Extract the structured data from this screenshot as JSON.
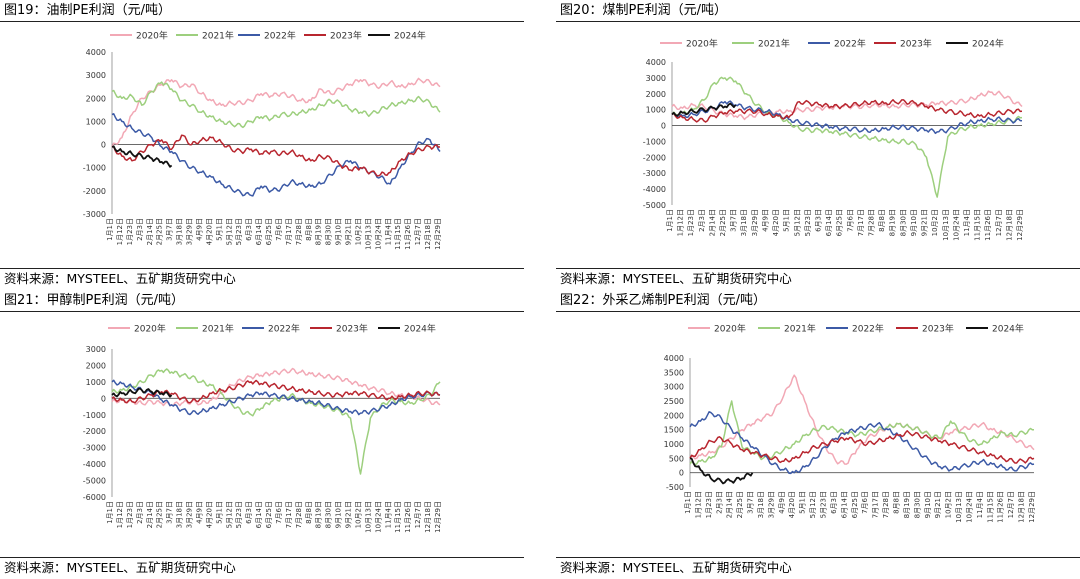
{
  "source_text": "资料来源：MYSTEEL、五矿期货研究中心",
  "colors": {
    "2020": "#f2a8b5",
    "2021": "#9dcf7e",
    "2022": "#3c5aa6",
    "2023": "#b8262f",
    "2024": "#111111"
  },
  "x_date_labels": [
    "1月1日",
    "1月12日",
    "1月23日",
    "2月3日",
    "2月14日",
    "2月25日",
    "3月7日",
    "3月18日",
    "3月29日",
    "4月9日",
    "4月20日",
    "5月1日",
    "5月12日",
    "5月23日",
    "6月3日",
    "6月14日",
    "6月25日",
    "7月6日",
    "7月17日",
    "7月28日",
    "8月8日",
    "8月19日",
    "8月30日",
    "9月10日",
    "9月21日",
    "10月2日",
    "10月13日",
    "10月24日",
    "11月4日",
    "11月15日",
    "11月26日",
    "12月7日",
    "12月18日",
    "12月29日"
  ],
  "chart_data": [
    {
      "title": "图19：油制PE利润（元/吨）",
      "type": "line",
      "legend_position": "top",
      "x_unit": "date",
      "ylim": [
        -3000,
        4000
      ],
      "yticks": [
        -3000,
        -2000,
        -1000,
        0,
        1000,
        2000,
        3000,
        4000
      ],
      "series": [
        {
          "name": "2020年",
          "values": [
            -100,
            300,
            1300,
            2000,
            2300,
            2600,
            2800,
            2500,
            2600,
            2200,
            1900,
            1700,
            1800,
            1800,
            1900,
            2200,
            2100,
            2200,
            2100,
            1900,
            1900,
            2400,
            2200,
            2400,
            2600,
            2800,
            2600,
            2500,
            2700,
            2500,
            2600,
            2800,
            2700,
            2500
          ]
        },
        {
          "name": "2021年",
          "values": [
            2300,
            2000,
            2100,
            1700,
            2300,
            2700,
            2400,
            1900,
            1700,
            1400,
            1200,
            1000,
            900,
            800,
            1000,
            1200,
            1100,
            1300,
            1300,
            1400,
            1500,
            1700,
            1900,
            1800,
            1500,
            1400,
            1300,
            1500,
            1700,
            1800,
            1900,
            2000,
            1800,
            1400
          ]
        },
        {
          "name": "2022年",
          "values": [
            1300,
            1000,
            700,
            500,
            300,
            -100,
            -300,
            -700,
            -1000,
            -1200,
            -1400,
            -1700,
            -1900,
            -2100,
            -2200,
            -1800,
            -2000,
            -1900,
            -1600,
            -1700,
            -1800,
            -1700,
            -1300,
            -900,
            -700,
            -1000,
            -1200,
            -1400,
            -1700,
            -1000,
            -400,
            100,
            200,
            -300
          ]
        },
        {
          "name": "2023年",
          "values": [
            -100,
            -500,
            -700,
            -300,
            0,
            200,
            -200,
            400,
            0,
            200,
            300,
            100,
            -200,
            -300,
            -200,
            -400,
            -300,
            -400,
            -300,
            -500,
            -700,
            -500,
            -600,
            -900,
            -1100,
            -1000,
            -1200,
            -1300,
            -1200,
            -700,
            -400,
            -200,
            -100,
            -100
          ]
        },
        {
          "name": "2024年",
          "values": [
            -100,
            -300,
            -400,
            -500,
            -600,
            -750,
            -900
          ]
        }
      ]
    },
    {
      "title": "图20：煤制PE利润（元/吨）",
      "type": "line",
      "legend_position": "top",
      "x_unit": "date",
      "ylim": [
        -5000,
        4000
      ],
      "yticks": [
        -5000,
        -4000,
        -3000,
        -2000,
        -1000,
        0,
        1000,
        2000,
        3000,
        4000
      ],
      "series": [
        {
          "name": "2020年",
          "values": [
            1200,
            1100,
            1300,
            1200,
            900,
            700,
            600,
            500,
            700,
            800,
            900,
            900,
            1000,
            1000,
            1100,
            1100,
            1200,
            1200,
            1200,
            1300,
            1300,
            1200,
            1300,
            1300,
            1300,
            1400,
            1400,
            1500,
            1600,
            1900,
            2100,
            2000,
            1600,
            1200
          ]
        },
        {
          "name": "2021年",
          "values": [
            700,
            800,
            1000,
            1600,
            2700,
            3000,
            2800,
            2000,
            1300,
            800,
            600,
            200,
            -200,
            -300,
            -300,
            -400,
            -500,
            -600,
            -700,
            -800,
            -900,
            -1000,
            -1000,
            -1200,
            -2000,
            -4500,
            -700,
            -300,
            -100,
            0,
            100,
            200,
            300,
            500
          ]
        },
        {
          "name": "2022年",
          "values": [
            700,
            600,
            700,
            900,
            1100,
            1500,
            1300,
            1100,
            1000,
            900,
            700,
            400,
            200,
            100,
            0,
            -100,
            -200,
            -200,
            -300,
            -300,
            -200,
            -100,
            -100,
            -200,
            -300,
            -400,
            -300,
            0,
            200,
            300,
            400,
            400,
            300,
            300
          ]
        },
        {
          "name": "2023年",
          "values": [
            700,
            500,
            400,
            300,
            600,
            800,
            900,
            900,
            900,
            700,
            600,
            500,
            1500,
            1400,
            1300,
            1200,
            1200,
            1300,
            1400,
            1500,
            1400,
            1500,
            1500,
            1400,
            1200,
            1000,
            900,
            800,
            700,
            600,
            700,
            800,
            900,
            900
          ]
        },
        {
          "name": "2024年",
          "values": [
            700,
            800,
            900,
            1000,
            1100,
            1200,
            1300
          ]
        }
      ]
    },
    {
      "title": "图21：甲醇制PE利润（元/吨）",
      "type": "line",
      "legend_position": "top",
      "x_unit": "date",
      "ylim": [
        -6000,
        3000
      ],
      "yticks": [
        -6000,
        -5000,
        -4000,
        -3000,
        -2000,
        -1000,
        0,
        1000,
        2000,
        3000
      ],
      "series": [
        {
          "name": "2020年",
          "values": [
            -200,
            -100,
            -200,
            -300,
            -200,
            -300,
            -400,
            -300,
            -200,
            -300,
            -100,
            300,
            800,
            1100,
            1300,
            1400,
            1500,
            1600,
            1700,
            1600,
            1500,
            1400,
            1300,
            1200,
            1000,
            800,
            600,
            500,
            300,
            200,
            100,
            0,
            -200,
            -400
          ]
        },
        {
          "name": "2021年",
          "values": [
            400,
            500,
            700,
            1000,
            1400,
            1700,
            1600,
            1400,
            1300,
            1000,
            800,
            300,
            -300,
            -800,
            -1000,
            -600,
            -200,
            0,
            200,
            -100,
            -300,
            -400,
            -600,
            -800,
            -1200,
            -4600,
            -1200,
            -500,
            -100,
            -200,
            -300,
            -100,
            200,
            1000
          ]
        },
        {
          "name": "2022年",
          "values": [
            1000,
            900,
            700,
            500,
            300,
            -100,
            -400,
            -700,
            -900,
            -800,
            -600,
            -400,
            -200,
            0,
            200,
            300,
            200,
            100,
            0,
            -100,
            -200,
            -300,
            -500,
            -700,
            -800,
            -900,
            -800,
            -600,
            -400,
            -100,
            100,
            200,
            300,
            200
          ]
        },
        {
          "name": "2023年",
          "values": [
            0,
            -100,
            -200,
            0,
            200,
            400,
            300,
            0,
            -200,
            0,
            300,
            500,
            600,
            800,
            1000,
            900,
            800,
            700,
            600,
            500,
            400,
            300,
            200,
            200,
            300,
            300,
            200,
            100,
            0,
            100,
            200,
            300,
            300,
            200
          ]
        },
        {
          "name": "2024年",
          "values": [
            200,
            300,
            400,
            500,
            400,
            300,
            200
          ]
        }
      ]
    },
    {
      "title": "图22：外采乙烯制PE利润（元/吨）",
      "type": "line",
      "legend_position": "top",
      "x_unit": "date",
      "ylim": [
        -500,
        4000
      ],
      "yticks": [
        -500,
        0,
        500,
        1000,
        1500,
        2000,
        2500,
        3000,
        3500,
        4000
      ],
      "series": [
        {
          "name": "2020年",
          "values": [
            500,
            600,
            700,
            900,
            1200,
            1500,
            1700,
            1900,
            2100,
            2700,
            3400,
            2500,
            1600,
            900,
            400,
            300,
            800,
            1200,
            1400,
            1600,
            1700,
            1600,
            1500,
            1300,
            1200,
            1400,
            1500,
            1600,
            1700,
            1500,
            1400,
            1200,
            1000,
            800
          ]
        },
        {
          "name": "2021年",
          "values": [
            300,
            400,
            500,
            900,
            2500,
            900,
            700,
            500,
            600,
            800,
            1000,
            1300,
            1500,
            1600,
            1500,
            1400,
            1300,
            1400,
            1500,
            1600,
            1700,
            1600,
            1500,
            1300,
            1200,
            1800,
            1400,
            1100,
            1000,
            1200,
            1400,
            1300,
            1400,
            1500
          ]
        },
        {
          "name": "2022年",
          "values": [
            1600,
            1800,
            2100,
            1900,
            1500,
            1200,
            900,
            600,
            300,
            100,
            0,
            200,
            500,
            900,
            1200,
            1400,
            1500,
            1600,
            1700,
            1500,
            1300,
            1000,
            700,
            400,
            200,
            100,
            200,
            300,
            400,
            300,
            200,
            100,
            200,
            300
          ]
        },
        {
          "name": "2023年",
          "values": [
            500,
            800,
            1100,
            1200,
            1000,
            800,
            700,
            600,
            500,
            400,
            500,
            700,
            900,
            1000,
            1100,
            1200,
            1100,
            1000,
            1100,
            1200,
            1300,
            1400,
            1300,
            1200,
            1100,
            1000,
            900,
            800,
            700,
            600,
            500,
            400,
            400,
            500
          ]
        },
        {
          "name": "2024年",
          "values": [
            500,
            100,
            -200,
            -300,
            -300,
            -200,
            0
          ]
        }
      ]
    }
  ]
}
